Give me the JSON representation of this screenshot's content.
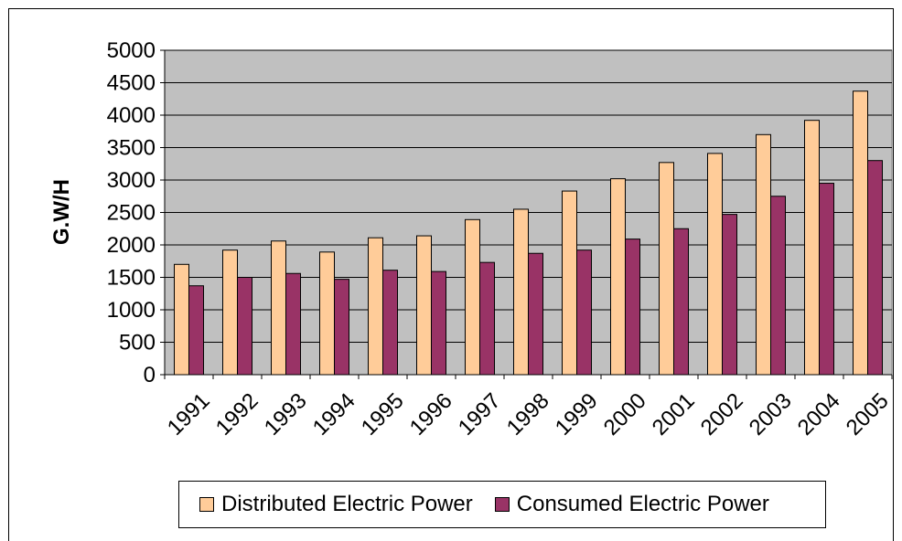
{
  "chart_data": {
    "type": "bar",
    "title": "",
    "xlabel": "",
    "ylabel": "G.W/H",
    "ylim": [
      0,
      5000
    ],
    "yticks": [
      "0",
      "500",
      "1000",
      "1500",
      "2000",
      "2500",
      "3000",
      "3500",
      "4000",
      "4500",
      "5000"
    ],
    "grid": true,
    "legend_position": "bottom",
    "categories": [
      "1991",
      "1992",
      "1993",
      "1994",
      "1995",
      "1996",
      "1997",
      "1998",
      "1999",
      "2000",
      "2001",
      "2002",
      "2003",
      "2004",
      "2005"
    ],
    "series": [
      {
        "name": "Distributed Electric Power",
        "color": "#FFCC99",
        "values": [
          1700,
          1920,
          2060,
          1890,
          2110,
          2140,
          2390,
          2550,
          2830,
          3020,
          3270,
          3410,
          3700,
          3920,
          4370
        ]
      },
      {
        "name": "Consumed Electric Power",
        "color": "#993366",
        "values": [
          1370,
          1500,
          1560,
          1470,
          1610,
          1590,
          1730,
          1870,
          1920,
          2090,
          2250,
          2470,
          2750,
          2950,
          3300
        ]
      }
    ],
    "plot_background": "#C0C0C0"
  }
}
